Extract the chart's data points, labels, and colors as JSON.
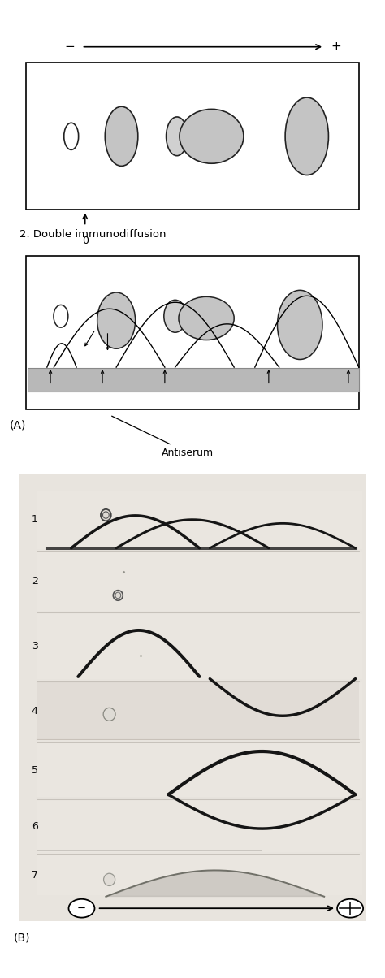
{
  "fig_width": 4.74,
  "fig_height": 12.04,
  "bg_color": "#ffffff",
  "panel_A_label": "(A)",
  "panel_B_label": "(B)",
  "antiserum_label": "Antiserum",
  "section2_label": "2. Double immunodiffusion",
  "arrow_label_minus": "−",
  "arrow_label_plus": "+",
  "circle_minus": "−",
  "circle_plus": "+",
  "lane_labels": [
    "1",
    "2",
    "3",
    "4",
    "5",
    "6",
    "7"
  ],
  "gel_bg": "#dedad4",
  "gel_light": "#e8e4de",
  "arc_color": "#111111",
  "separator_color": "#b8b4ae"
}
